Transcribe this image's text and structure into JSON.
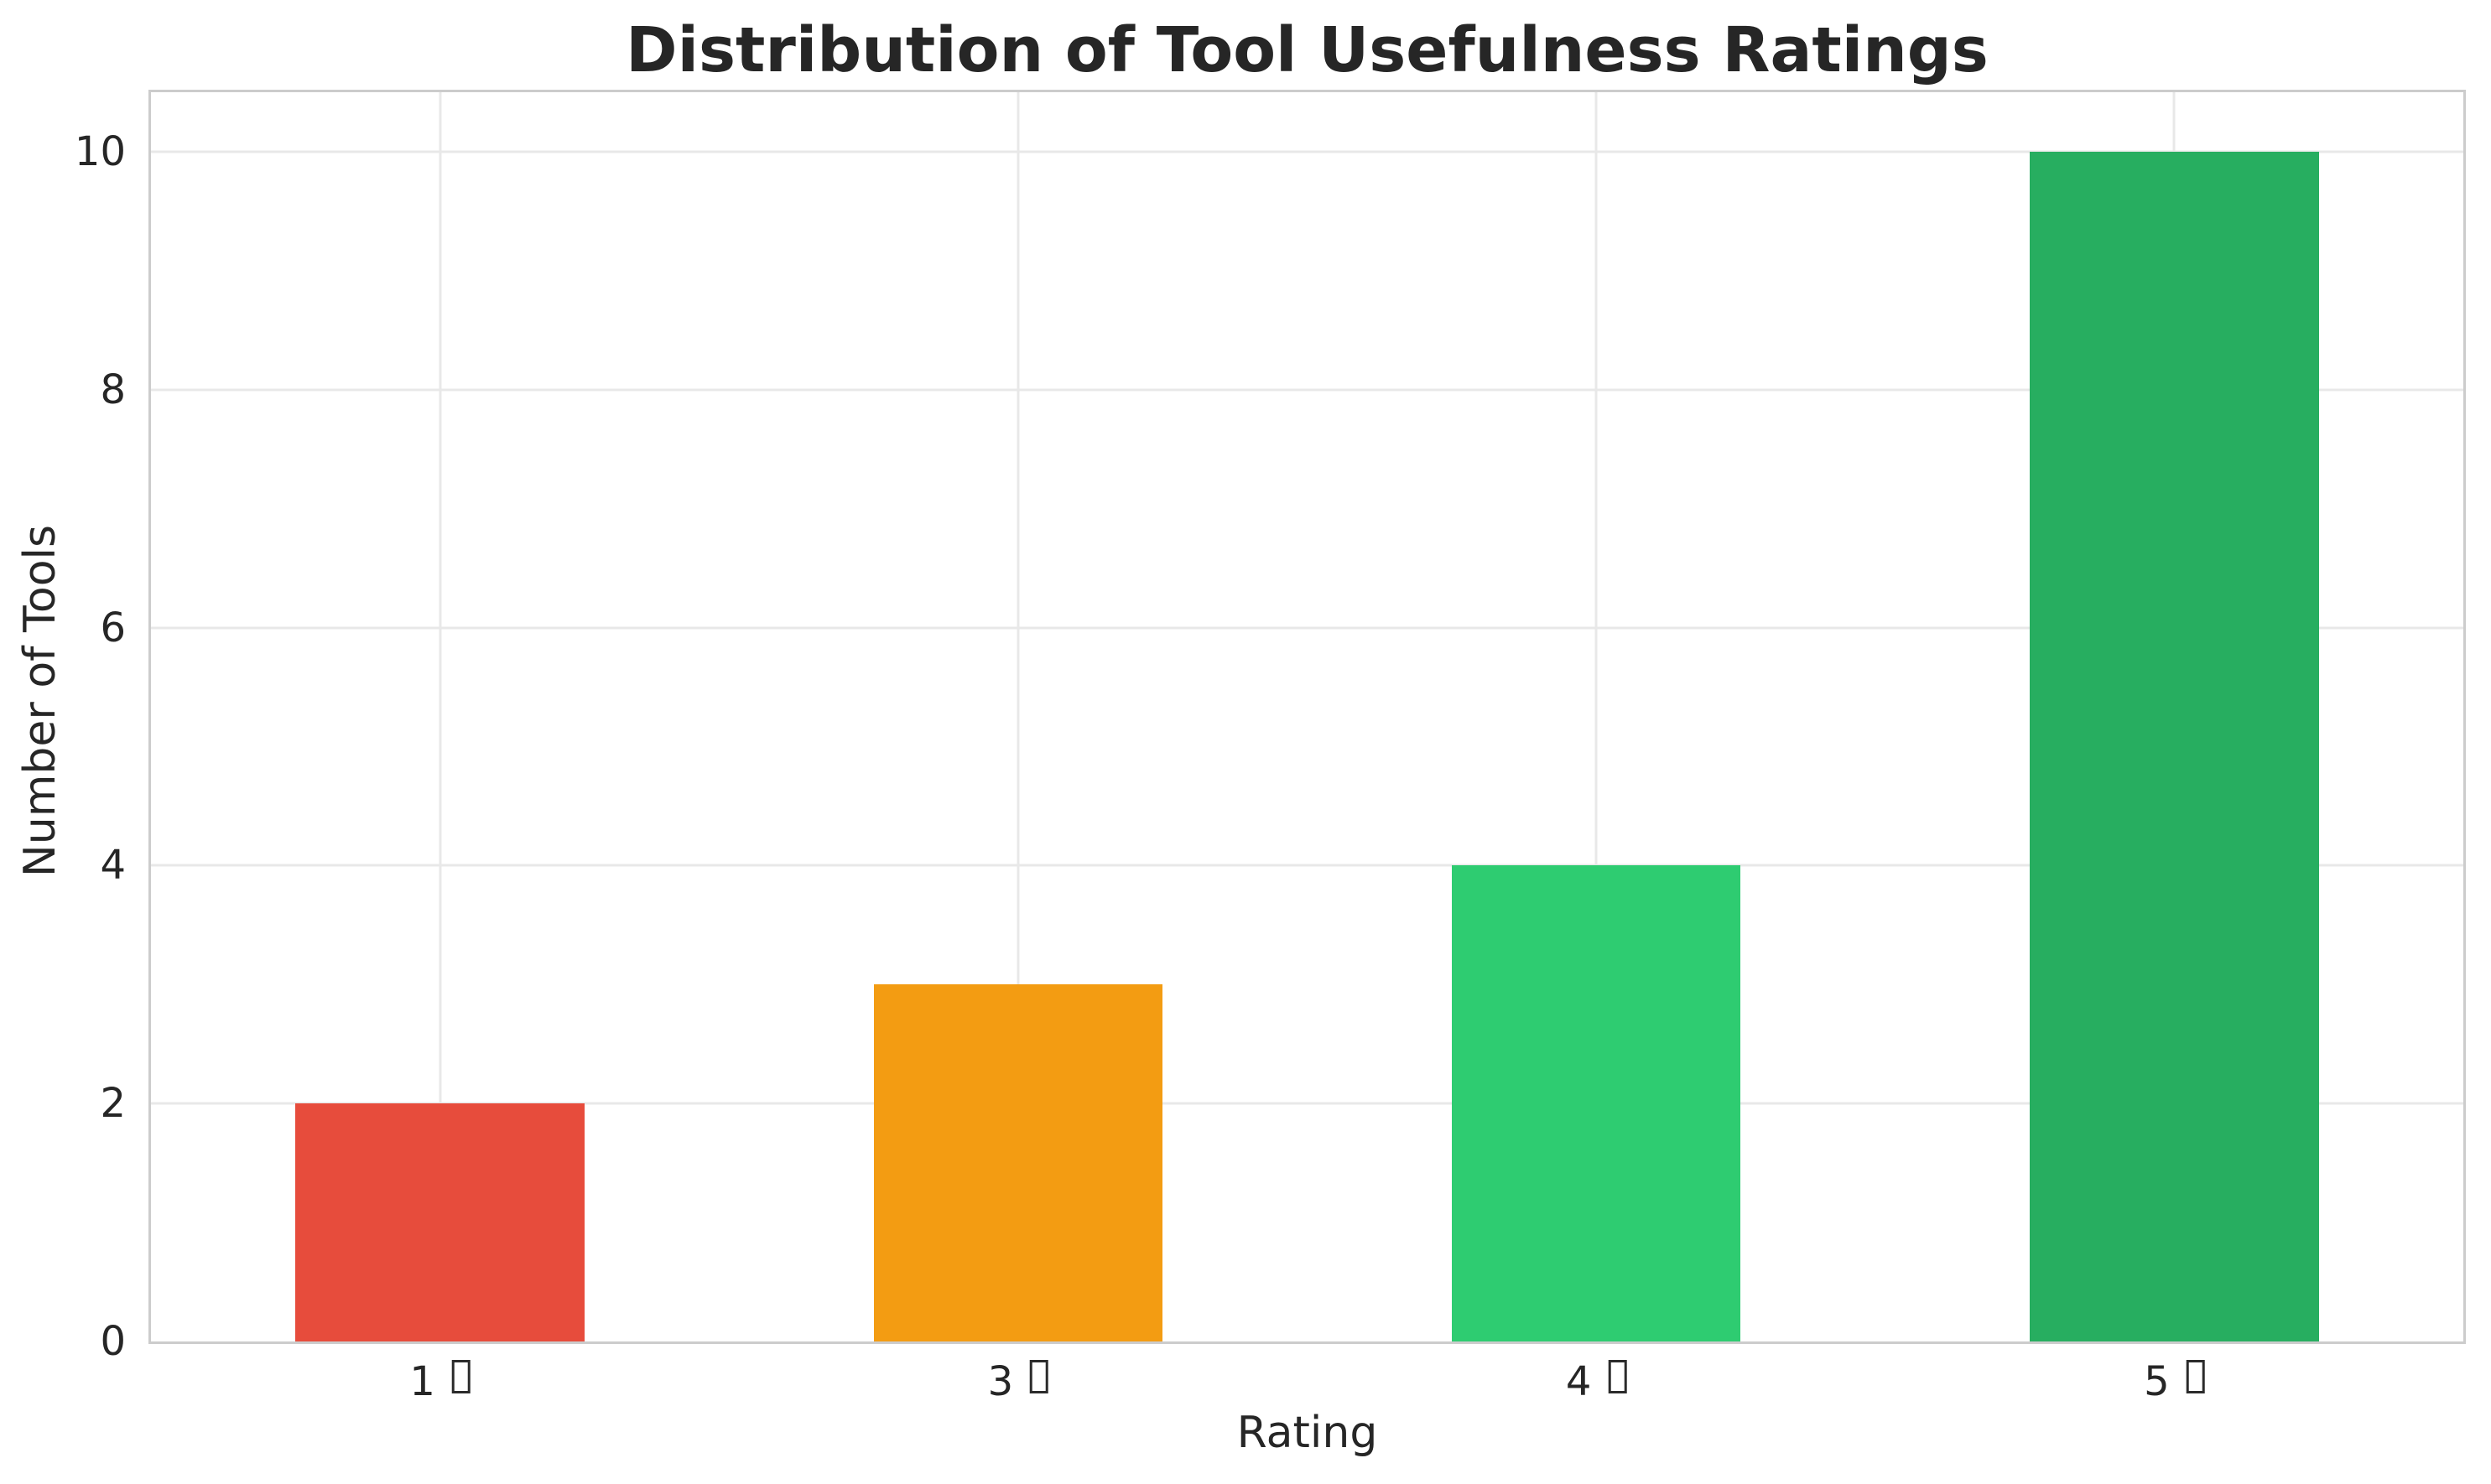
{
  "chart_data": {
    "type": "bar",
    "title": "Distribution of Tool Usefulness Ratings",
    "xlabel": "Rating",
    "ylabel": "Number of Tools",
    "categories": [
      "1",
      "3",
      "4",
      "5"
    ],
    "x_tick_labels_rendered": [
      "1 ▯",
      "3 ▯",
      "4 ▯",
      "5 ▯"
    ],
    "x_tick_suffix_glyph": "missing-glyph-box",
    "values": [
      2,
      3,
      4,
      10
    ],
    "bar_colors": [
      "#e74c3c",
      "#f39c12",
      "#2ecc71",
      "#27ae60"
    ],
    "yticks": [
      0,
      2,
      4,
      6,
      8,
      10
    ],
    "ylim": [
      0,
      10.5
    ],
    "bar_width_fraction": 0.125,
    "grid": true,
    "legend": false
  },
  "style": {
    "background": "#ffffff",
    "text_color": "#262626",
    "grid_color": "#e8e8e8",
    "spine_color": "#cccccc",
    "tofu_color": "#2b2b2b"
  }
}
